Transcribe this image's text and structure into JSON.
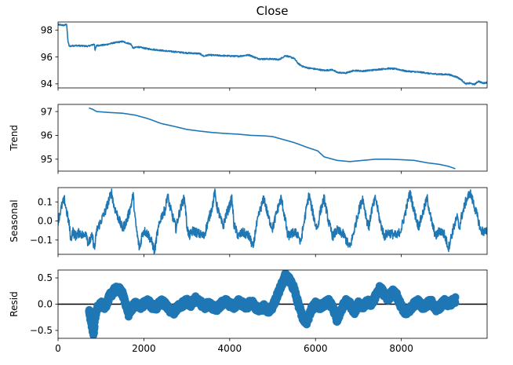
{
  "title": "Close",
  "x_ticks": [
    0,
    2000,
    4000,
    6000,
    8000
  ],
  "xlim": [
    0,
    9999
  ],
  "colors": {
    "series": "#1f77b4",
    "axes": "#000000",
    "zero_line": "#000000"
  },
  "chart_data": [
    {
      "type": "line",
      "title": "Close",
      "ylabel": "",
      "ylim": [
        93.7,
        98.6
      ],
      "y_ticks": [
        94,
        96,
        98
      ],
      "noise": 0.05,
      "points": [
        [
          0,
          98.4
        ],
        [
          150,
          98.35
        ],
        [
          200,
          98.45
        ],
        [
          230,
          97.2
        ],
        [
          260,
          96.8
        ],
        [
          400,
          96.85
        ],
        [
          700,
          96.8
        ],
        [
          850,
          96.95
        ],
        [
          860,
          96.5
        ],
        [
          900,
          96.85
        ],
        [
          1100,
          96.9
        ],
        [
          1300,
          97.05
        ],
        [
          1500,
          97.15
        ],
        [
          1700,
          96.95
        ],
        [
          1750,
          96.65
        ],
        [
          1850,
          96.75
        ],
        [
          2100,
          96.6
        ],
        [
          2500,
          96.45
        ],
        [
          3000,
          96.3
        ],
        [
          3300,
          96.25
        ],
        [
          3400,
          96.05
        ],
        [
          3500,
          96.15
        ],
        [
          3800,
          96.1
        ],
        [
          4200,
          96.05
        ],
        [
          4450,
          96.15
        ],
        [
          4600,
          95.95
        ],
        [
          4700,
          95.85
        ],
        [
          5000,
          95.85
        ],
        [
          5150,
          95.8
        ],
        [
          5300,
          96.1
        ],
        [
          5500,
          95.9
        ],
        [
          5600,
          95.5
        ],
        [
          5700,
          95.3
        ],
        [
          5800,
          95.2
        ],
        [
          6000,
          95.1
        ],
        [
          6200,
          95.0
        ],
        [
          6400,
          95.05
        ],
        [
          6500,
          94.85
        ],
        [
          6700,
          94.8
        ],
        [
          6900,
          95.0
        ],
        [
          7100,
          94.95
        ],
        [
          7400,
          95.05
        ],
        [
          7700,
          95.15
        ],
        [
          7900,
          95.1
        ],
        [
          8100,
          94.95
        ],
        [
          8300,
          94.9
        ],
        [
          8500,
          94.85
        ],
        [
          8700,
          94.75
        ],
        [
          9000,
          94.7
        ],
        [
          9100,
          94.7
        ],
        [
          9300,
          94.5
        ],
        [
          9400,
          94.3
        ],
        [
          9500,
          94.0
        ],
        [
          9600,
          94.05
        ],
        [
          9700,
          93.95
        ],
        [
          9800,
          94.2
        ],
        [
          9900,
          94.05
        ],
        [
          9999,
          94.1
        ]
      ]
    },
    {
      "type": "line",
      "title": "",
      "ylabel": "Trend",
      "ylim": [
        94.5,
        97.3
      ],
      "y_ticks": [
        95,
        96,
        97
      ],
      "noise": 0,
      "points": [
        [
          720,
          97.15
        ],
        [
          800,
          97.1
        ],
        [
          900,
          97.0
        ],
        [
          1200,
          96.96
        ],
        [
          1500,
          96.93
        ],
        [
          1800,
          96.85
        ],
        [
          2100,
          96.7
        ],
        [
          2400,
          96.5
        ],
        [
          2700,
          96.38
        ],
        [
          3000,
          96.25
        ],
        [
          3300,
          96.18
        ],
        [
          3600,
          96.12
        ],
        [
          3900,
          96.08
        ],
        [
          4200,
          96.05
        ],
        [
          4500,
          96.0
        ],
        [
          4800,
          95.98
        ],
        [
          5000,
          95.95
        ],
        [
          5200,
          95.85
        ],
        [
          5500,
          95.7
        ],
        [
          5800,
          95.5
        ],
        [
          6050,
          95.35
        ],
        [
          6200,
          95.1
        ],
        [
          6500,
          94.95
        ],
        [
          6800,
          94.9
        ],
        [
          7100,
          94.95
        ],
        [
          7400,
          95.0
        ],
        [
          7700,
          95.0
        ],
        [
          8000,
          94.98
        ],
        [
          8300,
          94.95
        ],
        [
          8600,
          94.85
        ],
        [
          8900,
          94.78
        ],
        [
          9100,
          94.7
        ],
        [
          9260,
          94.6
        ]
      ]
    },
    {
      "type": "line",
      "title": "",
      "ylabel": "Seasonal",
      "ylim": [
        -0.175,
        0.175
      ],
      "y_ticks": [
        -0.1,
        0.0,
        0.1
      ],
      "y_tick_labels": [
        "−0.1",
        "0.0",
        "0.1"
      ],
      "noise": 0.025,
      "points": [
        [
          0,
          0.0
        ],
        [
          100,
          0.09
        ],
        [
          150,
          0.11
        ],
        [
          200,
          0.05
        ],
        [
          260,
          -0.02
        ],
        [
          300,
          -0.1
        ],
        [
          340,
          -0.05
        ],
        [
          400,
          -0.08
        ],
        [
          500,
          -0.06
        ],
        [
          600,
          -0.08
        ],
        [
          650,
          -0.05
        ],
        [
          700,
          -0.12
        ],
        [
          800,
          -0.08
        ],
        [
          850,
          -0.15
        ],
        [
          900,
          -0.05
        ],
        [
          1000,
          0.0
        ],
        [
          1100,
          0.05
        ],
        [
          1200,
          0.12
        ],
        [
          1250,
          0.15
        ],
        [
          1300,
          0.08
        ],
        [
          1400,
          0.02
        ],
        [
          1500,
          -0.04
        ],
        [
          1600,
          0.0
        ],
        [
          1700,
          0.08
        ],
        [
          1750,
          0.14
        ],
        [
          1800,
          0.0
        ],
        [
          1850,
          -0.08
        ],
        [
          1900,
          -0.15
        ],
        [
          1950,
          -0.08
        ],
        [
          2000,
          -0.05
        ],
        [
          2100,
          -0.07
        ],
        [
          2200,
          -0.12
        ],
        [
          2250,
          -0.16
        ],
        [
          2300,
          -0.08
        ],
        [
          2400,
          0.02
        ],
        [
          2500,
          0.06
        ],
        [
          2550,
          0.14
        ],
        [
          2600,
          0.08
        ],
        [
          2700,
          0.0
        ],
        [
          2750,
          -0.04
        ],
        [
          2800,
          0.02
        ],
        [
          2900,
          0.1
        ],
        [
          2950,
          0.12
        ],
        [
          3000,
          -0.02
        ],
        [
          3050,
          -0.08
        ],
        [
          3150,
          -0.05
        ],
        [
          3300,
          -0.07
        ],
        [
          3400,
          -0.08
        ],
        [
          3450,
          -0.04
        ],
        [
          3500,
          0.0
        ],
        [
          3600,
          0.08
        ],
        [
          3650,
          0.15
        ],
        [
          3700,
          0.08
        ],
        [
          3800,
          0.0
        ],
        [
          3850,
          -0.03
        ],
        [
          3900,
          0.02
        ],
        [
          4000,
          0.08
        ],
        [
          4050,
          0.12
        ],
        [
          4100,
          -0.02
        ],
        [
          4200,
          -0.08
        ],
        [
          4300,
          -0.06
        ],
        [
          4450,
          -0.08
        ],
        [
          4550,
          -0.14
        ],
        [
          4600,
          -0.05
        ],
        [
          4700,
          0.05
        ],
        [
          4800,
          0.12
        ],
        [
          4900,
          0.02
        ],
        [
          5000,
          -0.04
        ],
        [
          5100,
          0.05
        ],
        [
          5200,
          0.12
        ],
        [
          5300,
          0.0
        ],
        [
          5350,
          -0.08
        ],
        [
          5500,
          -0.06
        ],
        [
          5600,
          -0.07
        ],
        [
          5650,
          -0.12
        ],
        [
          5700,
          -0.05
        ],
        [
          5800,
          0.08
        ],
        [
          5850,
          0.14
        ],
        [
          5900,
          0.08
        ],
        [
          6000,
          -0.02
        ],
        [
          6050,
          -0.04
        ],
        [
          6100,
          0.04
        ],
        [
          6200,
          0.12
        ],
        [
          6300,
          0.0
        ],
        [
          6400,
          -0.08
        ],
        [
          6500,
          -0.05
        ],
        [
          6650,
          -0.07
        ],
        [
          6800,
          -0.14
        ],
        [
          6900,
          -0.05
        ],
        [
          7000,
          0.05
        ],
        [
          7100,
          0.12
        ],
        [
          7200,
          0.0
        ],
        [
          7250,
          -0.03
        ],
        [
          7300,
          0.05
        ],
        [
          7400,
          0.12
        ],
        [
          7500,
          0.0
        ],
        [
          7600,
          -0.08
        ],
        [
          7700,
          -0.06
        ],
        [
          7900,
          -0.08
        ],
        [
          8000,
          -0.04
        ],
        [
          8100,
          0.05
        ],
        [
          8200,
          0.15
        ],
        [
          8300,
          0.05
        ],
        [
          8400,
          -0.03
        ],
        [
          8500,
          0.04
        ],
        [
          8600,
          0.12
        ],
        [
          8700,
          0.0
        ],
        [
          8800,
          -0.08
        ],
        [
          8900,
          -0.05
        ],
        [
          9000,
          -0.07
        ],
        [
          9100,
          -0.14
        ],
        [
          9200,
          -0.05
        ],
        [
          9300,
          0.02
        ],
        [
          9350,
          -0.04
        ],
        [
          9400,
          0.02
        ],
        [
          9500,
          0.1
        ],
        [
          9600,
          0.15
        ],
        [
          9700,
          0.08
        ],
        [
          9800,
          0.0
        ],
        [
          9850,
          -0.05
        ],
        [
          9999,
          -0.06
        ]
      ]
    },
    {
      "type": "scatter",
      "title": "",
      "ylabel": "Resid",
      "ylim": [
        -0.65,
        0.65
      ],
      "y_ticks": [
        -0.5,
        0.0,
        0.5
      ],
      "y_tick_labels": [
        "−0.5",
        "0.0",
        "0.5"
      ],
      "zero_line": true,
      "noise": 0.06,
      "points": [
        [
          720,
          -0.1
        ],
        [
          760,
          -0.3
        ],
        [
          800,
          -0.45
        ],
        [
          830,
          -0.6
        ],
        [
          860,
          -0.3
        ],
        [
          900,
          -0.1
        ],
        [
          950,
          -0.05
        ],
        [
          1000,
          0.0
        ],
        [
          1100,
          -0.05
        ],
        [
          1200,
          0.15
        ],
        [
          1300,
          0.25
        ],
        [
          1400,
          0.3
        ],
        [
          1500,
          0.2
        ],
        [
          1600,
          -0.05
        ],
        [
          1650,
          -0.2
        ],
        [
          1700,
          -0.1
        ],
        [
          1800,
          0.0
        ],
        [
          1900,
          -0.05
        ],
        [
          2000,
          0.0
        ],
        [
          2100,
          0.05
        ],
        [
          2200,
          -0.05
        ],
        [
          2300,
          -0.05
        ],
        [
          2400,
          0.05
        ],
        [
          2500,
          0.0
        ],
        [
          2600,
          -0.1
        ],
        [
          2700,
          -0.15
        ],
        [
          2800,
          -0.05
        ],
        [
          2900,
          0.0
        ],
        [
          3000,
          0.05
        ],
        [
          3100,
          0.0
        ],
        [
          3200,
          0.1
        ],
        [
          3300,
          0.05
        ],
        [
          3400,
          -0.05
        ],
        [
          3500,
          0.0
        ],
        [
          3600,
          -0.05
        ],
        [
          3700,
          -0.08
        ],
        [
          3800,
          0.0
        ],
        [
          3900,
          0.05
        ],
        [
          4000,
          0.0
        ],
        [
          4100,
          -0.05
        ],
        [
          4200,
          0.05
        ],
        [
          4300,
          0.0
        ],
        [
          4400,
          -0.05
        ],
        [
          4500,
          0.05
        ],
        [
          4600,
          -0.05
        ],
        [
          4700,
          -0.1
        ],
        [
          4800,
          -0.05
        ],
        [
          4900,
          -0.12
        ],
        [
          5000,
          -0.05
        ],
        [
          5100,
          0.15
        ],
        [
          5200,
          0.35
        ],
        [
          5300,
          0.55
        ],
        [
          5400,
          0.45
        ],
        [
          5500,
          0.3
        ],
        [
          5600,
          0.0
        ],
        [
          5700,
          -0.25
        ],
        [
          5800,
          -0.35
        ],
        [
          5900,
          -0.1
        ],
        [
          6000,
          0.0
        ],
        [
          6100,
          -0.05
        ],
        [
          6200,
          0.0
        ],
        [
          6300,
          0.05
        ],
        [
          6400,
          -0.05
        ],
        [
          6500,
          -0.3
        ],
        [
          6600,
          -0.1
        ],
        [
          6700,
          0.05
        ],
        [
          6800,
          0.0
        ],
        [
          6900,
          -0.15
        ],
        [
          7000,
          0.0
        ],
        [
          7100,
          -0.05
        ],
        [
          7200,
          0.05
        ],
        [
          7300,
          0.0
        ],
        [
          7400,
          0.15
        ],
        [
          7500,
          0.3
        ],
        [
          7600,
          0.2
        ],
        [
          7700,
          0.1
        ],
        [
          7800,
          0.25
        ],
        [
          7900,
          0.15
        ],
        [
          8000,
          -0.05
        ],
        [
          8100,
          -0.15
        ],
        [
          8200,
          -0.1
        ],
        [
          8300,
          0.0
        ],
        [
          8400,
          0.05
        ],
        [
          8500,
          -0.05
        ],
        [
          8600,
          0.0
        ],
        [
          8700,
          0.05
        ],
        [
          8800,
          -0.1
        ],
        [
          8900,
          -0.05
        ],
        [
          9000,
          0.05
        ],
        [
          9100,
          0.0
        ],
        [
          9200,
          0.05
        ],
        [
          9260,
          0.08
        ]
      ]
    }
  ]
}
